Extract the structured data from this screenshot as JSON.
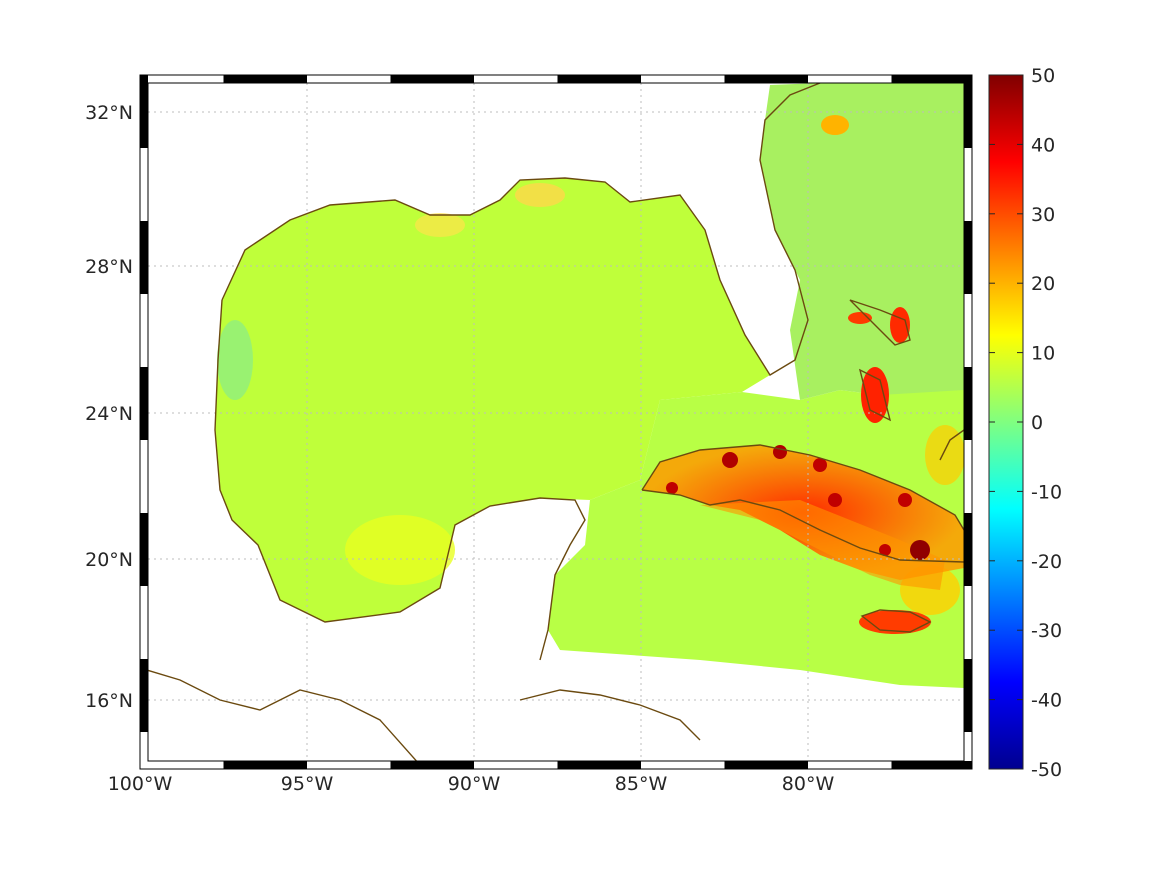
{
  "map": {
    "extent": {
      "lon_min": -100,
      "lon_max": -75.2,
      "lat_min": 14.2,
      "lat_max": 32.9
    },
    "lon_ticks": [
      {
        "value": -100,
        "label": "100°W"
      },
      {
        "value": -95,
        "label": "95°W"
      },
      {
        "value": -90,
        "label": "90°W"
      },
      {
        "value": -85,
        "label": "85°W"
      },
      {
        "value": -80,
        "label": "80°W"
      }
    ],
    "lat_ticks": [
      {
        "value": 32,
        "label": "32°N"
      },
      {
        "value": 28,
        "label": "28°N"
      },
      {
        "value": 24,
        "label": "24°N"
      },
      {
        "value": 20,
        "label": "20°N"
      },
      {
        "value": 16,
        "label": "16°N"
      }
    ],
    "grid": "dotted",
    "frame": "alternating black-white ticks",
    "coastline_color": "#6b4a10",
    "field_base_color": "#bfff3a",
    "highlight_regions": [
      {
        "name": "Cuba",
        "level": 30
      },
      {
        "name": "Jamaica",
        "level": 30
      },
      {
        "name": "Bahamas",
        "level": 35
      }
    ]
  },
  "colorbar": {
    "min": -50,
    "max": 50,
    "ticks": [
      "50",
      "40",
      "30",
      "20",
      "10",
      "0",
      "-10",
      "-20",
      "-30",
      "-40",
      "-50"
    ],
    "colormap": "jet",
    "colors": [
      "#00008f",
      "#0000ff",
      "#0080ff",
      "#00ffff",
      "#80ff80",
      "#ffff00",
      "#ff8000",
      "#ff0000",
      "#800000"
    ]
  }
}
